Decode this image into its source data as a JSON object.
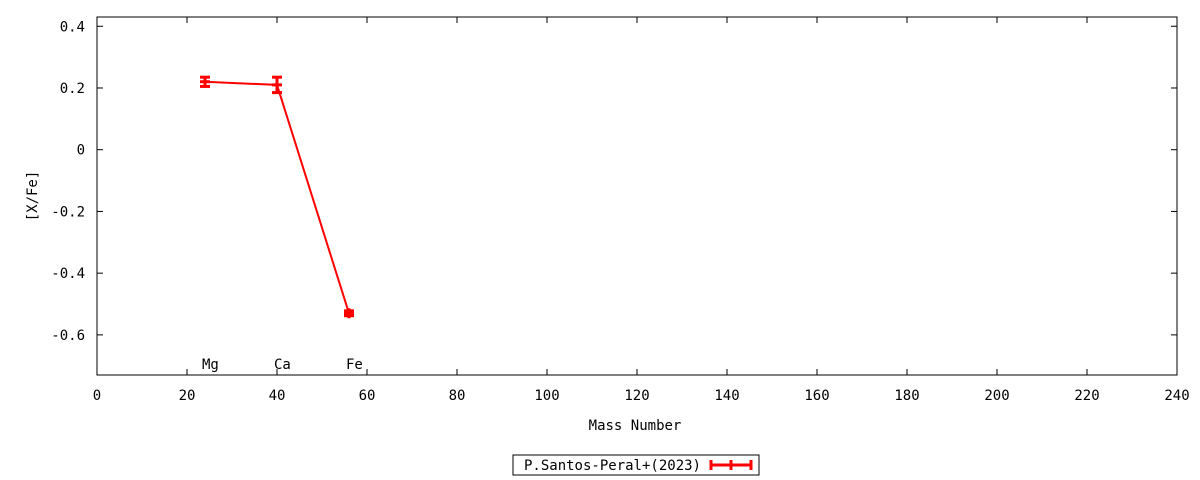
{
  "chart_data": {
    "type": "line",
    "xlabel": "Mass Number",
    "ylabel": "[X/Fe]",
    "xlim": [
      0,
      240
    ],
    "ylim": [
      -0.73,
      0.43
    ],
    "xticks": [
      0,
      20,
      40,
      60,
      80,
      100,
      120,
      140,
      160,
      180,
      200,
      220,
      240
    ],
    "yticks": [
      0.4,
      0.2,
      0,
      -0.2,
      -0.4,
      -0.6
    ],
    "ytick_labels": [
      "0.4",
      "0.2",
      "0",
      "-0.2",
      "-0.4",
      "-0.6"
    ],
    "grid": false,
    "legend_placement": "bottom-center",
    "series": [
      {
        "name": "P.Santos-Peral+(2023)",
        "color": "#ff0000",
        "x": [
          24,
          40,
          56
        ],
        "y": [
          0.22,
          0.21,
          -0.53
        ],
        "yerr": [
          0.015,
          0.025,
          0.008
        ]
      }
    ],
    "annotations": [
      {
        "text": "Mg",
        "x": 24
      },
      {
        "text": "Ca",
        "x": 40
      },
      {
        "text": "Fe",
        "x": 56
      }
    ]
  }
}
